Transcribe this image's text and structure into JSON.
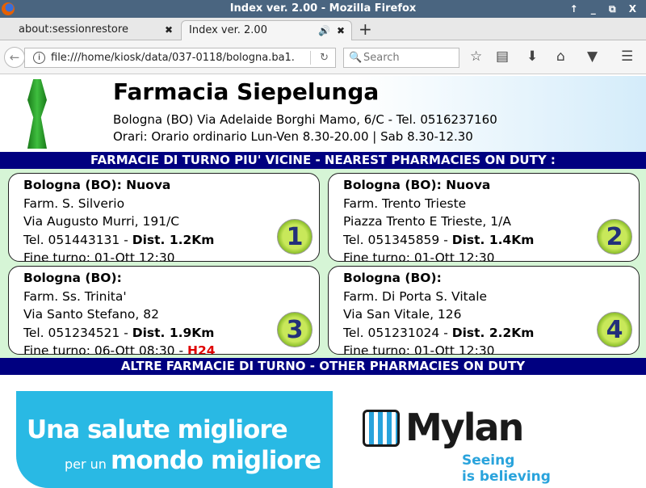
{
  "window": {
    "title": "Index ver. 2.00 - Mozilla Firefox",
    "controls": "↑ _ ⧉ X"
  },
  "tabs": [
    {
      "label": "about:sessionrestore"
    },
    {
      "label": "Index ver. 2.00"
    }
  ],
  "nav": {
    "url": "file:///home/kiosk/data/037-0118/bologna.ba1.",
    "search_placeholder": "Search"
  },
  "header": {
    "name": "Farmacia Siepelunga",
    "address": "Bologna (BO) Via Adelaide Borghi Mamo, 6/C - Tel. 0516237160",
    "hours": "Orari: Orario ordinario Lun-Ven 8.30-20.00 | Sab 8.30-12.30"
  },
  "band_nearest": "FARMACIE DI TURNO PIU' VICINE - NEAREST PHARMACIES ON DUTY :",
  "band_other": "ALTRE FARMACIE DI TURNO - OTHER PHARMACIES ON DUTY",
  "pharmacies": [
    {
      "city": "Bologna (BO): Nuova",
      "name": "Farm. S. Silverio",
      "address": "Via Augusto Murri, 191/C",
      "tel": "Tel. 051443131 - ",
      "dist": "Dist. 1.2Km",
      "end": "Fine turno: 01-Ott 12:30",
      "extra": "",
      "num": "1"
    },
    {
      "city": "Bologna (BO): Nuova",
      "name": "Farm. Trento Trieste",
      "address": "Piazza Trento E Trieste, 1/A",
      "tel": "Tel. 051345859 - ",
      "dist": "Dist. 1.4Km",
      "end": "Fine turno: 01-Ott 12:30",
      "extra": "",
      "num": "2"
    },
    {
      "city": "Bologna (BO):",
      "name": "Farm. Ss. Trinita'",
      "address": "Via Santo Stefano, 82",
      "tel": "Tel. 051234521 - ",
      "dist": "Dist. 1.9Km",
      "end": "Fine turno: 06-Ott 08:30 - ",
      "extra": "H24",
      "num": "3"
    },
    {
      "city": "Bologna (BO):",
      "name": "Farm. Di Porta S. Vitale",
      "address": "Via San Vitale, 126",
      "tel": "Tel. 051231024 - ",
      "dist": "Dist. 2.2Km",
      "end": "Fine turno: 01-Ott 12:30",
      "extra": "",
      "num": "4"
    }
  ],
  "ad": {
    "line1": "Una salute migliore",
    "line2_small": "per un",
    "line2_large": "mondo migliore",
    "brand": "Mylan",
    "tag1": "Seeing",
    "tag2": "is believing"
  }
}
